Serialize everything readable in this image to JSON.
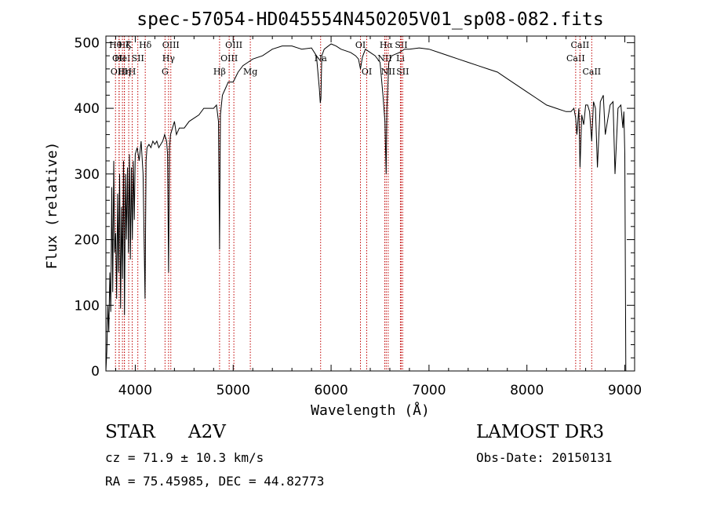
{
  "chart_data": {
    "type": "line",
    "title": "spec-57054-HD045554N450205V01_sp08-082.fits",
    "xlabel": "Wavelength (Å)",
    "ylabel": "Flux (relative)",
    "xlim": [
      3700,
      9100
    ],
    "ylim": [
      0,
      510
    ],
    "xticks": [
      4000,
      5000,
      6000,
      7000,
      8000,
      9000
    ],
    "yticks": [
      0,
      100,
      200,
      300,
      400,
      500
    ],
    "x": [
      3700,
      3710,
      3720,
      3730,
      3740,
      3750,
      3760,
      3770,
      3780,
      3790,
      3800,
      3810,
      3820,
      3830,
      3840,
      3850,
      3860,
      3870,
      3880,
      3890,
      3900,
      3910,
      3920,
      3930,
      3940,
      3950,
      3960,
      3970,
      3980,
      3990,
      4000,
      4020,
      4040,
      4060,
      4080,
      4090,
      4100,
      4110,
      4120,
      4140,
      4160,
      4180,
      4200,
      4220,
      4240,
      4260,
      4280,
      4300,
      4320,
      4330,
      4340,
      4350,
      4360,
      4380,
      4400,
      4420,
      4450,
      4500,
      4550,
      4600,
      4650,
      4700,
      4750,
      4800,
      4830,
      4850,
      4861,
      4870,
      4890,
      4920,
      4950,
      5000,
      5050,
      5100,
      5150,
      5200,
      5300,
      5400,
      5500,
      5600,
      5700,
      5800,
      5850,
      5880,
      5890,
      5896,
      5905,
      5930,
      6000,
      6050,
      6100,
      6200,
      6250,
      6280,
      6300,
      6320,
      6350,
      6400,
      6450,
      6500,
      6530,
      6550,
      6563,
      6570,
      6590,
      6620,
      6650,
      6700,
      6750,
      6800,
      6900,
      7000,
      7100,
      7200,
      7300,
      7400,
      7500,
      7600,
      7700,
      7800,
      7900,
      8000,
      8100,
      8200,
      8300,
      8400,
      8450,
      8480,
      8498,
      8510,
      8530,
      8542,
      8560,
      8580,
      8600,
      8620,
      8640,
      8662,
      8680,
      8700,
      8720,
      8750,
      8780,
      8800,
      8850,
      8880,
      8900,
      8930,
      8960,
      8980,
      8990,
      9000,
      9010
    ],
    "values": [
      0,
      30,
      100,
      60,
      150,
      90,
      280,
      120,
      320,
      180,
      210,
      110,
      270,
      150,
      300,
      95,
      250,
      140,
      320,
      85,
      300,
      200,
      310,
      180,
      330,
      170,
      310,
      200,
      320,
      230,
      330,
      340,
      320,
      350,
      300,
      200,
      110,
      320,
      340,
      345,
      340,
      350,
      345,
      350,
      340,
      345,
      350,
      360,
      350,
      330,
      150,
      340,
      360,
      370,
      380,
      360,
      370,
      370,
      380,
      385,
      390,
      400,
      400,
      400,
      405,
      380,
      185,
      390,
      420,
      430,
      440,
      440,
      455,
      465,
      470,
      475,
      480,
      490,
      495,
      495,
      490,
      492,
      480,
      430,
      408,
      415,
      480,
      490,
      498,
      495,
      490,
      485,
      480,
      475,
      460,
      478,
      490,
      485,
      480,
      470,
      420,
      380,
      300,
      400,
      470,
      480,
      482,
      485,
      490,
      490,
      492,
      490,
      485,
      480,
      475,
      470,
      465,
      460,
      455,
      445,
      435,
      425,
      415,
      405,
      400,
      395,
      395,
      400,
      385,
      360,
      400,
      310,
      390,
      375,
      405,
      405,
      395,
      350,
      410,
      400,
      310,
      410,
      420,
      360,
      405,
      410,
      300,
      400,
      405,
      370,
      395,
      330,
      0
    ],
    "lines": [
      {
        "w": 3798,
        "label": "Hθ",
        "row": 1
      },
      {
        "w": 3835,
        "label": "OII",
        "row": 2
      },
      {
        "w": 3835,
        "label": "OIII",
        "row": 3
      },
      {
        "w": 3869,
        "label": "HeI",
        "row": 2
      },
      {
        "w": 3889,
        "label": "Hζ",
        "row": 1
      },
      {
        "w": 3889,
        "label": "Hη",
        "row": 3
      },
      {
        "w": 3933,
        "label": "K",
        "row": 1
      },
      {
        "w": 3969,
        "label": "H",
        "row": 3
      },
      {
        "w": 4026,
        "label": "SII",
        "row": 2
      },
      {
        "w": 4102,
        "label": "Hδ",
        "row": 1
      },
      {
        "w": 4304,
        "label": "G",
        "row": 3
      },
      {
        "w": 4340,
        "label": "Hγ",
        "row": 2
      },
      {
        "w": 4363,
        "label": "OIII",
        "row": 1
      },
      {
        "w": 4861,
        "label": "Hβ",
        "row": 3
      },
      {
        "w": 4959,
        "label": "OIII",
        "row": 2
      },
      {
        "w": 5007,
        "label": "OIII",
        "row": 1
      },
      {
        "w": 5175,
        "label": "Mg",
        "row": 3
      },
      {
        "w": 5893,
        "label": "Na",
        "row": 2
      },
      {
        "w": 6300,
        "label": "OI",
        "row": 1
      },
      {
        "w": 6364,
        "label": "OI",
        "row": 3
      },
      {
        "w": 6548,
        "label": "NII",
        "row": 2
      },
      {
        "w": 6563,
        "label": "Hα",
        "row": 1
      },
      {
        "w": 6583,
        "label": "NII",
        "row": 3
      },
      {
        "w": 6708,
        "label": "Li",
        "row": 2
      },
      {
        "w": 6716,
        "label": "SII",
        "row": 1
      },
      {
        "w": 6731,
        "label": "SII",
        "row": 3
      },
      {
        "w": 8498,
        "label": "CaII",
        "row": 2
      },
      {
        "w": 8542,
        "label": "CaII",
        "row": 1
      },
      {
        "w": 8662,
        "label": "CaII",
        "row": 3
      }
    ]
  },
  "footer": {
    "object_type": "STAR",
    "spectral_class": "A2V",
    "survey": "LAMOST DR3",
    "cz": "cz = 71.9 ± 10.3 km/s",
    "obs_date": "Obs-Date: 20150131",
    "coords": "RA =  75.45985, DEC =  44.82773"
  }
}
